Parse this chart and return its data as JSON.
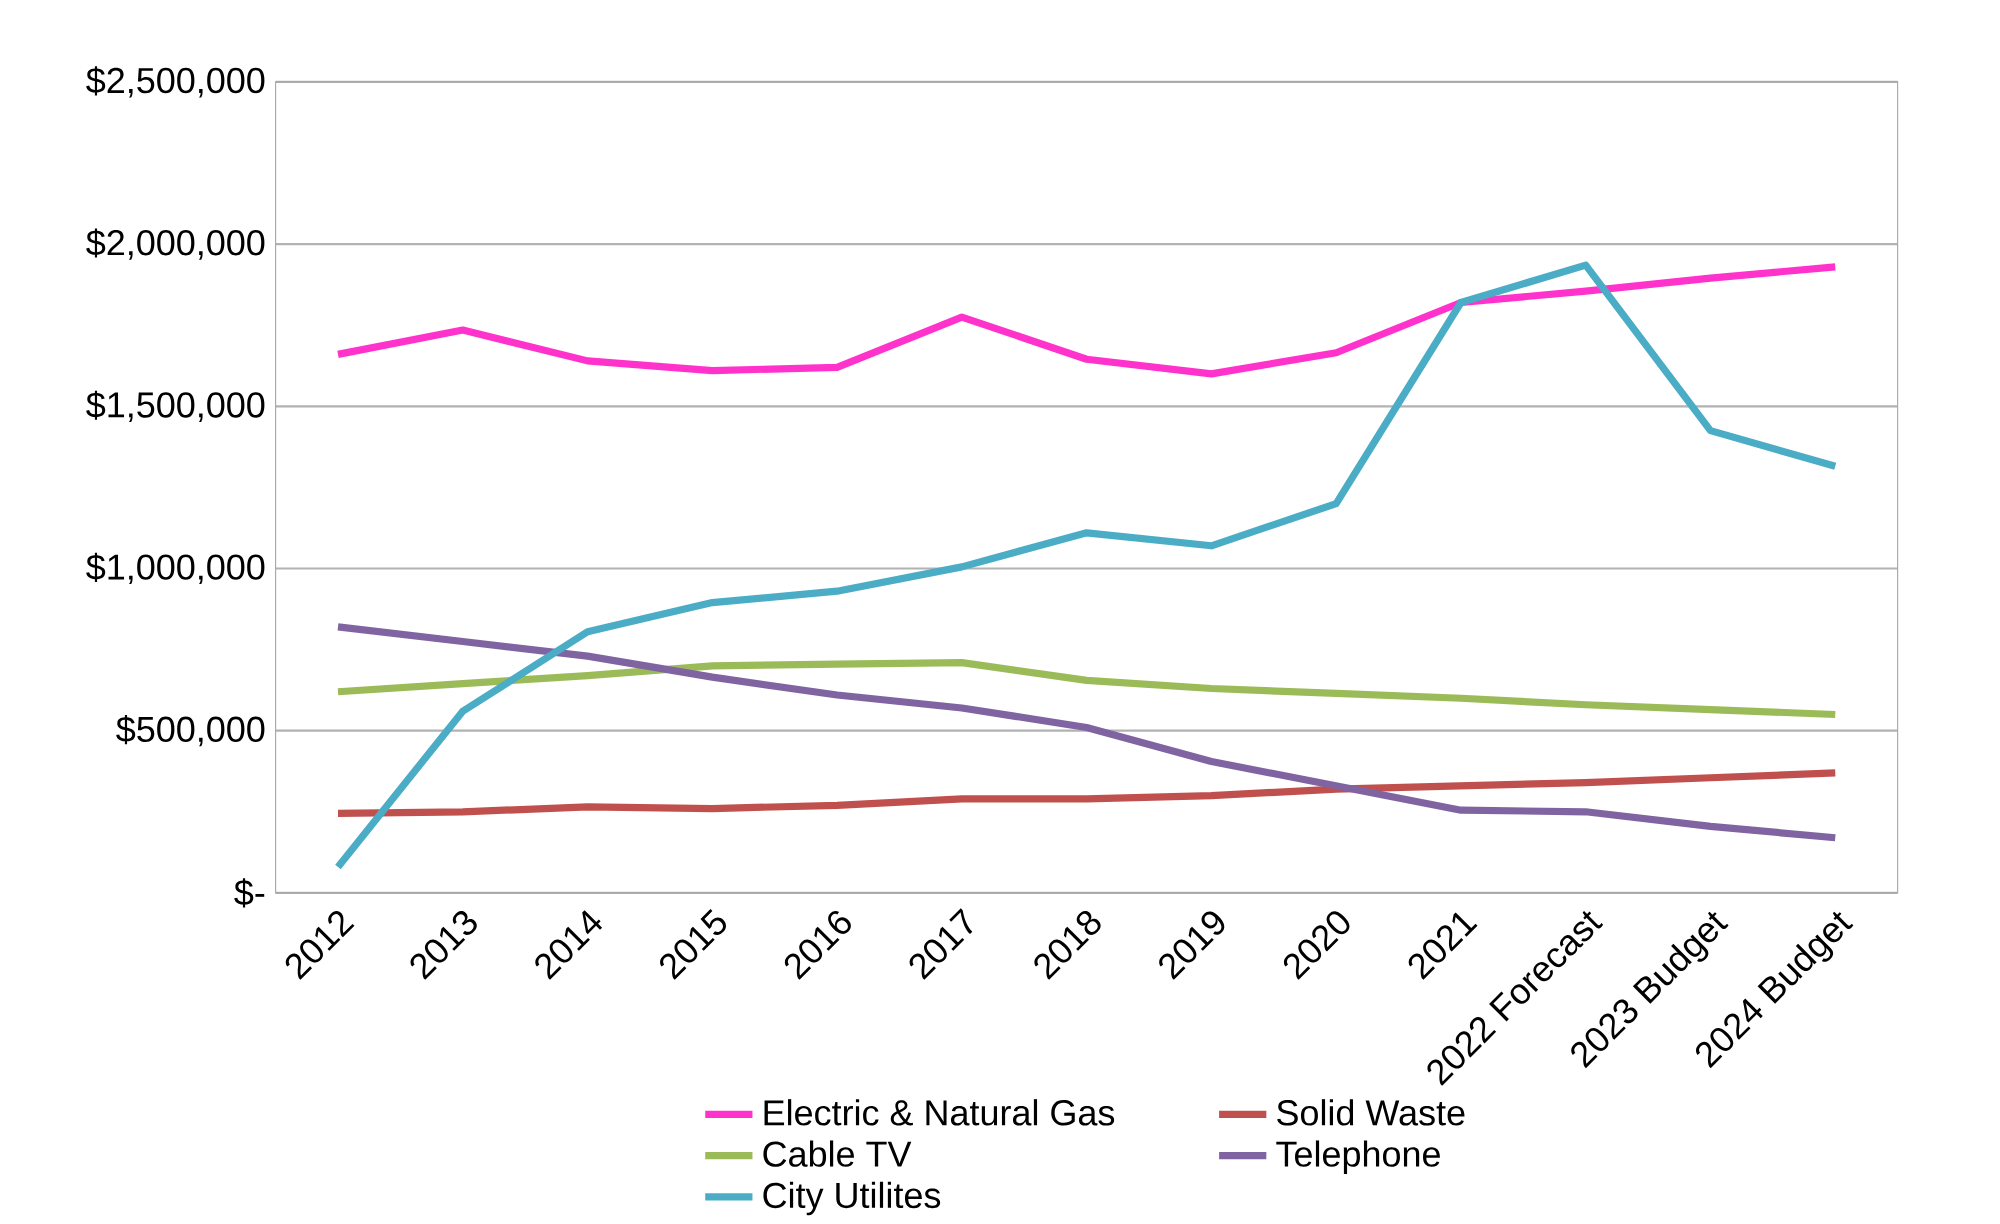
{
  "chart_data": {
    "type": "line",
    "categories": [
      "2012",
      "2013",
      "2014",
      "2015",
      "2016",
      "2017",
      "2018",
      "2019",
      "2020",
      "2021",
      "2022 Forecast",
      "2023 Budget",
      "2024 Budget"
    ],
    "series": [
      {
        "name": "Electric & Natural Gas",
        "color": "#ff33cc",
        "values": [
          1660000,
          1735000,
          1640000,
          1610000,
          1620000,
          1775000,
          1645000,
          1600000,
          1665000,
          1820000,
          1855000,
          1895000,
          1930000
        ]
      },
      {
        "name": "Solid Waste",
        "color": "#c0504d",
        "values": [
          245000,
          250000,
          265000,
          260000,
          270000,
          290000,
          290000,
          300000,
          320000,
          330000,
          340000,
          355000,
          370000
        ]
      },
      {
        "name": "Cable TV",
        "color": "#9bbb59",
        "values": [
          620000,
          645000,
          670000,
          700000,
          705000,
          710000,
          655000,
          630000,
          615000,
          600000,
          580000,
          565000,
          550000
        ]
      },
      {
        "name": "Telephone",
        "color": "#8064a2",
        "values": [
          820000,
          775000,
          730000,
          665000,
          610000,
          570000,
          510000,
          405000,
          330000,
          255000,
          250000,
          205000,
          170000
        ]
      },
      {
        "name": "City Utilites",
        "color": "#4bacc6",
        "values": [
          80000,
          560000,
          805000,
          895000,
          930000,
          1005000,
          1110000,
          1070000,
          1200000,
          1820000,
          1935000,
          1425000,
          1315000
        ]
      }
    ],
    "ylim": [
      0,
      2500000
    ],
    "yticks": [
      {
        "value": 0,
        "label": "$-"
      },
      {
        "value": 500000,
        "label": "$500,000"
      },
      {
        "value": 1000000,
        "label": "$1,000,000"
      },
      {
        "value": 1500000,
        "label": "$1,500,000"
      },
      {
        "value": 2000000,
        "label": "$2,000,000"
      },
      {
        "value": 2500000,
        "label": "$2,500,000"
      }
    ],
    "grid": "y",
    "legend": "bottom",
    "marker": "none",
    "line_style": "solid"
  }
}
